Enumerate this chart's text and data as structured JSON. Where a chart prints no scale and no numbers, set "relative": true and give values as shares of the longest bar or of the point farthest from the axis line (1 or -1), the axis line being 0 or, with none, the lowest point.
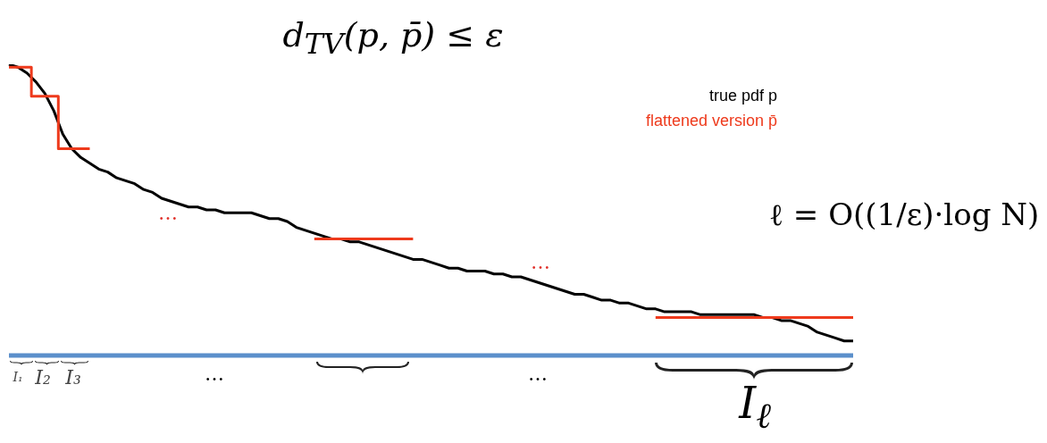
{
  "chart_data": {
    "type": "line",
    "relative": true,
    "title": "d$_{TV}$(p, p̄) ≤ ε",
    "legend": "top right",
    "categories": [
      null,
      null,
      null,
      null,
      null,
      null,
      null,
      null,
      null,
      null,
      null,
      null,
      null,
      null,
      null,
      null,
      null,
      null,
      null,
      null,
      null,
      null,
      null,
      null,
      null,
      null,
      null,
      null,
      null,
      null,
      null,
      null,
      null,
      null,
      null,
      null,
      null,
      null,
      null,
      null,
      null,
      null,
      null,
      null,
      null,
      null,
      null,
      null,
      null,
      null,
      null,
      null,
      null,
      null,
      null,
      null,
      null,
      null,
      null,
      null,
      null,
      null,
      null,
      null,
      null,
      null,
      null,
      null,
      null,
      null,
      null,
      null,
      null,
      null,
      null,
      null,
      null,
      null,
      null,
      null,
      null,
      null,
      null,
      null,
      null,
      null,
      null,
      null,
      null,
      null,
      null,
      null,
      null,
      null,
      null
    ],
    "series": [
      {
        "name": "true pdf p",
        "color": "#000000",
        "type": "line",
        "values": [
          1.0,
          0.99,
          0.97,
          0.94,
          0.9,
          0.84,
          0.76,
          0.71,
          0.68,
          0.66,
          0.64,
          0.63,
          0.61,
          0.6,
          0.59,
          0.57,
          0.56,
          0.54,
          0.53,
          0.52,
          0.51,
          0.51,
          0.5,
          0.5,
          0.49,
          0.49,
          0.49,
          0.49,
          0.48,
          0.47,
          0.47,
          0.46,
          0.44,
          0.43,
          0.42,
          0.41,
          0.4,
          0.4,
          0.39,
          0.39,
          0.38,
          0.37,
          0.36,
          0.35,
          0.34,
          0.33,
          0.33,
          0.32,
          0.31,
          0.3,
          0.3,
          0.29,
          0.29,
          0.29,
          0.28,
          0.28,
          0.27,
          0.27,
          0.26,
          0.25,
          0.24,
          0.23,
          0.22,
          0.21,
          0.21,
          0.2,
          0.19,
          0.19,
          0.18,
          0.18,
          0.17,
          0.16,
          0.16,
          0.15,
          0.15,
          0.15,
          0.15,
          0.14,
          0.14,
          0.14,
          0.14,
          0.14,
          0.14,
          0.14,
          0.13,
          0.13,
          0.12,
          0.12,
          0.11,
          0.1,
          0.08,
          0.07,
          0.06,
          0.05,
          0.05
        ]
      },
      {
        "name": "flattened version p̄",
        "color": "#ee3a1c",
        "type": "step",
        "values": [
          0.99,
          0.99,
          0.99,
          0.89,
          0.89,
          0.89,
          0.71,
          0.71,
          0.71,
          0.71,
          null,
          null,
          null,
          null,
          null,
          null,
          null,
          null,
          null,
          null,
          null,
          null,
          null,
          null,
          null,
          null,
          null,
          null,
          null,
          null,
          null,
          null,
          null,
          null,
          0.4,
          0.4,
          0.4,
          0.4,
          0.4,
          0.4,
          0.4,
          0.4,
          0.4,
          0.4,
          0.4,
          0.4,
          null,
          null,
          null,
          null,
          null,
          null,
          null,
          null,
          null,
          null,
          null,
          null,
          null,
          null,
          null,
          null,
          null,
          null,
          null,
          null,
          null,
          null,
          null,
          null,
          null,
          null,
          0.13,
          0.13,
          0.13,
          0.13,
          0.13,
          0.13,
          0.13,
          0.13,
          0.13,
          0.13,
          0.13,
          0.13,
          0.13,
          0.13,
          0.13,
          0.13,
          0.13,
          0.13,
          0.13,
          0.13,
          0.13,
          0.13,
          0.13
        ]
      }
    ],
    "annotations": [
      "ℓ = O((1/ε)·log N)",
      "…",
      "…",
      "…",
      "…",
      "I₁",
      "I₂",
      "I₃",
      "I$_{ℓ}$"
    ]
  }
}
